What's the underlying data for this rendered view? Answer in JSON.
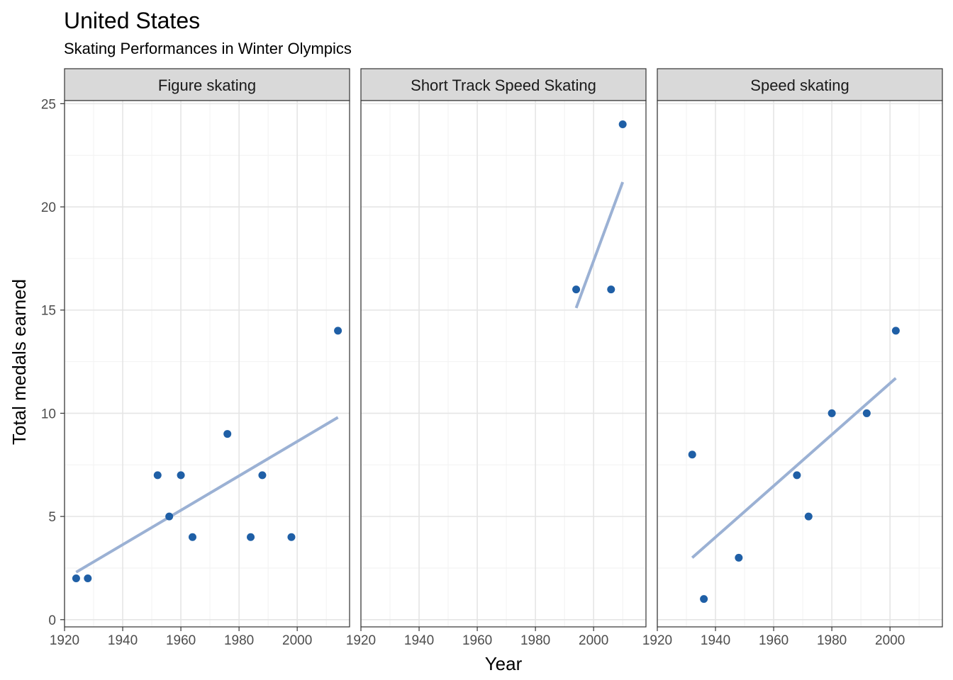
{
  "chart_data": {
    "type": "scatter",
    "title": "United States",
    "subtitle": "Skating Performances in Winter Olympics",
    "xlabel": "Year",
    "ylabel": "Total medals earned",
    "xlim": [
      1920,
      2018
    ],
    "ylim": [
      0,
      25
    ],
    "x_ticks": [
      1920,
      1940,
      1960,
      1980,
      2000
    ],
    "y_ticks": [
      0,
      5,
      10,
      15,
      20,
      25
    ],
    "grid": true,
    "legend": "none",
    "point_color": "#1f5fa6",
    "trend_color": "#9bb1d4",
    "panels": [
      {
        "facet": "Figure skating",
        "points": [
          {
            "x": 1924,
            "y": 2
          },
          {
            "x": 1928,
            "y": 2
          },
          {
            "x": 1952,
            "y": 7
          },
          {
            "x": 1956,
            "y": 5
          },
          {
            "x": 1960,
            "y": 7
          },
          {
            "x": 1964,
            "y": 4
          },
          {
            "x": 1976,
            "y": 9
          },
          {
            "x": 1984,
            "y": 4
          },
          {
            "x": 1988,
            "y": 7
          },
          {
            "x": 1998,
            "y": 4
          },
          {
            "x": 2014,
            "y": 14
          }
        ],
        "trend": [
          {
            "x": 1924,
            "y": 2.3
          },
          {
            "x": 2014,
            "y": 9.8
          }
        ]
      },
      {
        "facet": "Short Track Speed Skating",
        "points": [
          {
            "x": 1994,
            "y": 16
          },
          {
            "x": 2006,
            "y": 16
          },
          {
            "x": 2010,
            "y": 24
          }
        ],
        "trend": [
          {
            "x": 1994,
            "y": 15.1
          },
          {
            "x": 2010,
            "y": 21.2
          }
        ]
      },
      {
        "facet": "Speed skating",
        "points": [
          {
            "x": 1932,
            "y": 8
          },
          {
            "x": 1936,
            "y": 1
          },
          {
            "x": 1948,
            "y": 3
          },
          {
            "x": 1968,
            "y": 7
          },
          {
            "x": 1972,
            "y": 5
          },
          {
            "x": 1980,
            "y": 10
          },
          {
            "x": 1992,
            "y": 10
          },
          {
            "x": 2002,
            "y": 14
          }
        ],
        "trend": [
          {
            "x": 1932,
            "y": 3.0
          },
          {
            "x": 2002,
            "y": 11.7
          }
        ]
      }
    ]
  }
}
